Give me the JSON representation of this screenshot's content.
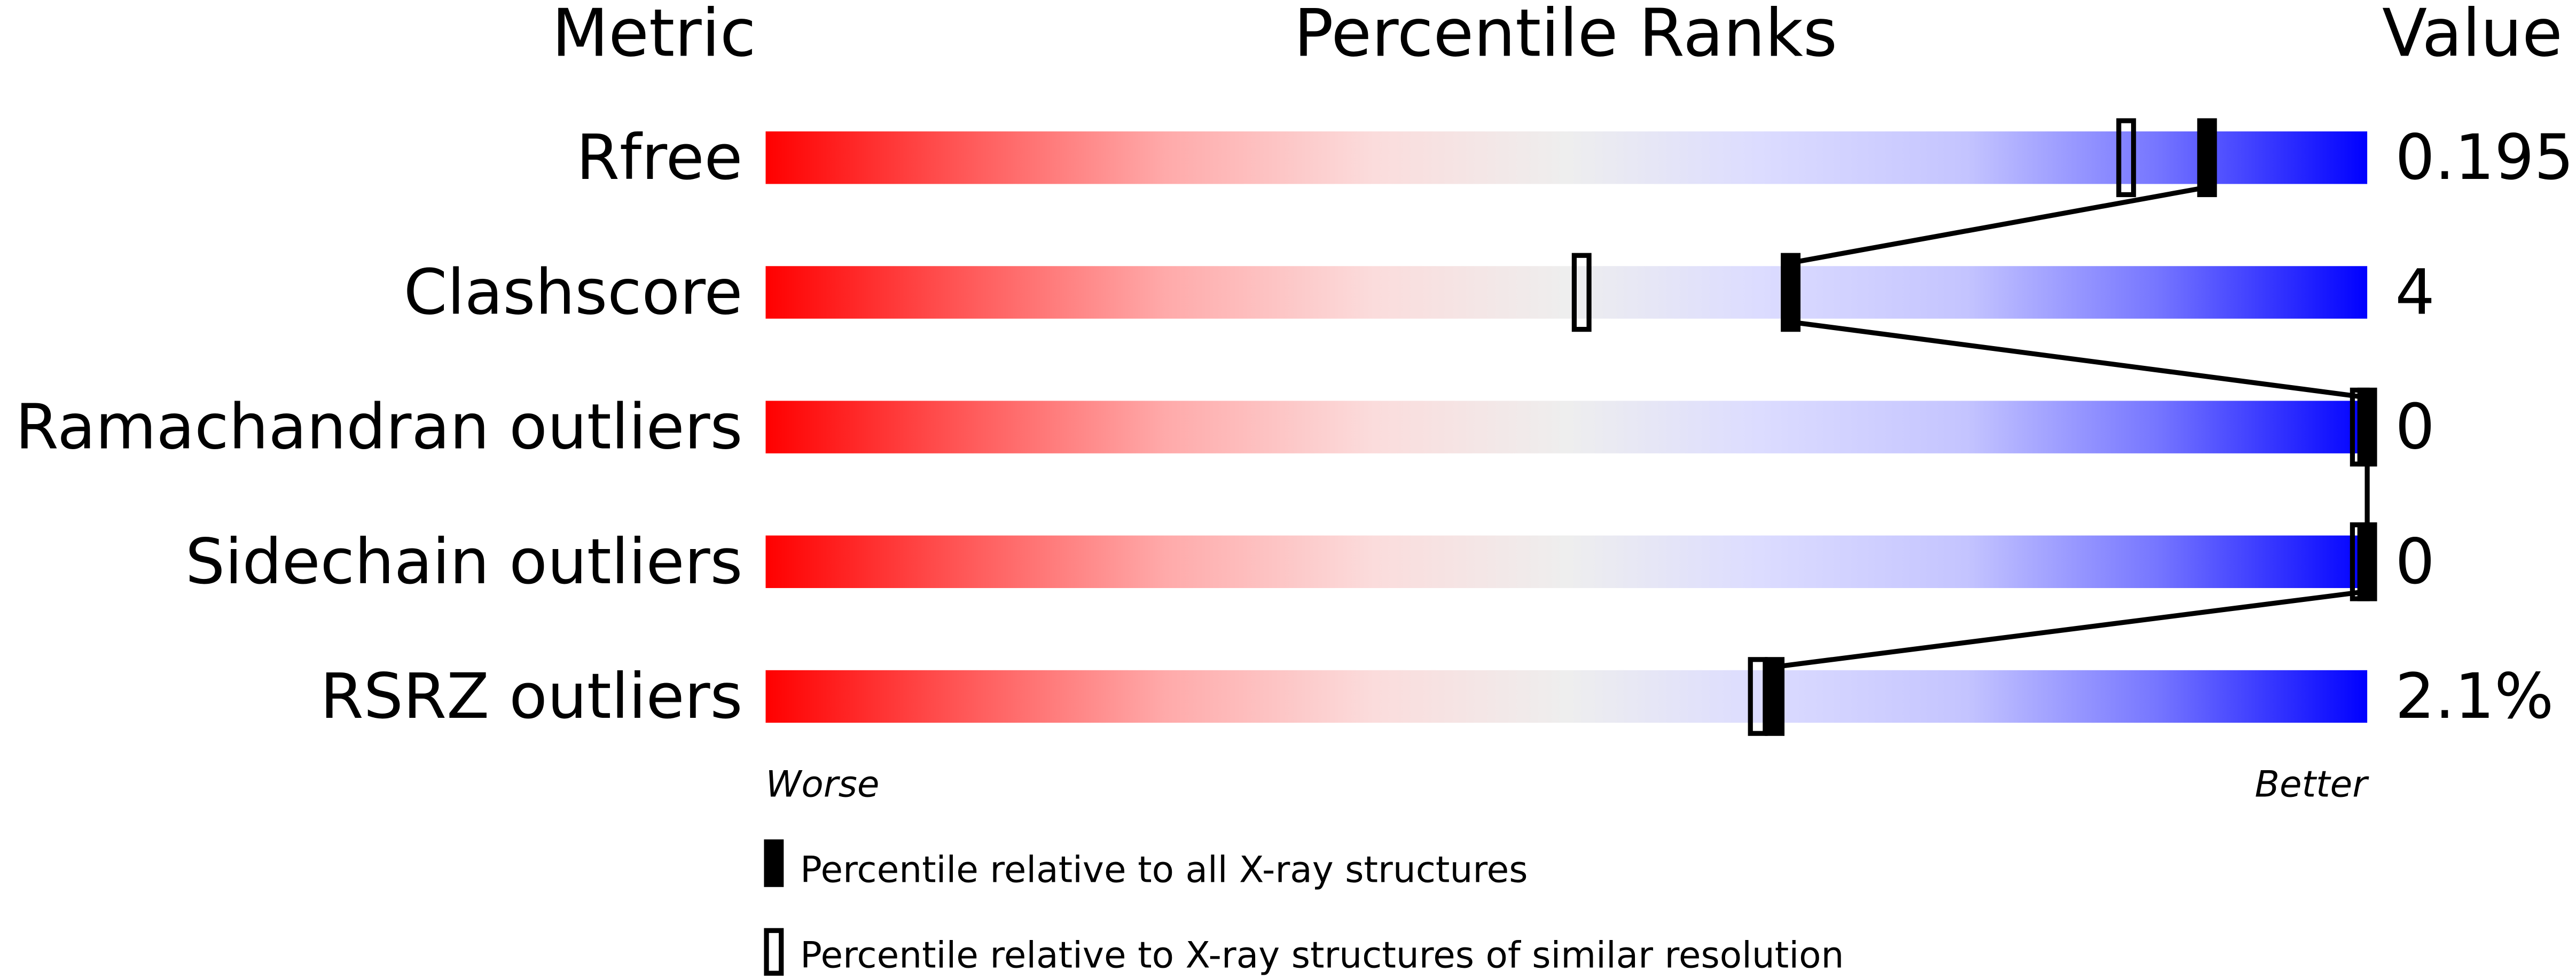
{
  "chart_data": {
    "type": "percentile-bar",
    "headers": {
      "metric": "Metric",
      "ranks": "Percentile Ranks",
      "value": "Value"
    },
    "xlim": [
      0,
      100
    ],
    "axis": {
      "left": "Worse",
      "right": "Better"
    },
    "gradient_colors": [
      "#ff0000",
      "#eeeeee",
      "#dcdcff",
      "#0000ff"
    ],
    "rows": [
      {
        "metric": "Rfree",
        "value": "0.195",
        "percentile_all": 90,
        "percentile_similar": 85
      },
      {
        "metric": "Clashscore",
        "value": "4",
        "percentile_all": 64,
        "percentile_similar": 51
      },
      {
        "metric": "Ramachandran outliers",
        "value": "0",
        "percentile_all": 100,
        "percentile_similar": 100
      },
      {
        "metric": "Sidechain outliers",
        "value": "0",
        "percentile_all": 100,
        "percentile_similar": 100
      },
      {
        "metric": "RSRZ outliers",
        "value": "2.1%",
        "percentile_all": 63,
        "percentile_similar": 62
      }
    ],
    "legend": [
      {
        "marker": "filled",
        "label": "Percentile relative to all X-ray structures"
      },
      {
        "marker": "open",
        "label": "Percentile relative to X-ray structures of similar resolution"
      }
    ]
  }
}
